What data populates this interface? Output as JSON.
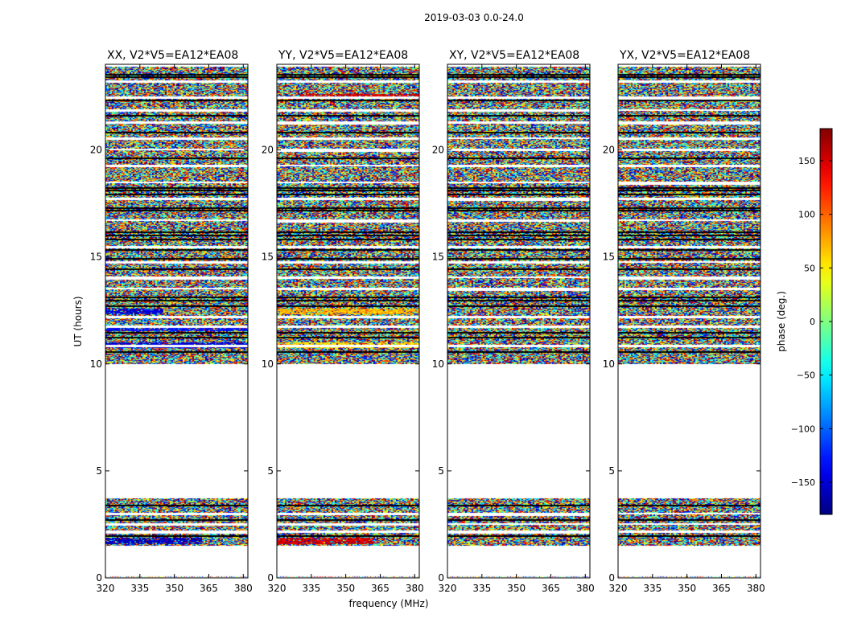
{
  "figure_title": "2019-03-03 0.0-24.0",
  "chart_data": {
    "type": "heatmap",
    "title": "2019-03-03 0.0-24.0",
    "xlabel": "frequency (MHz)",
    "ylabel": "UT (hours)",
    "xlim": [
      320,
      382
    ],
    "ylim": [
      0,
      24
    ],
    "xticks": [
      320,
      335,
      350,
      365,
      380
    ],
    "yticks": [
      0,
      5,
      10,
      15,
      20
    ],
    "colorbar": {
      "label": "phase (deg.)",
      "range": [
        -180,
        180
      ],
      "ticks": [
        150,
        100,
        50,
        0,
        -50,
        -100,
        -150
      ],
      "tick_labels": [
        "150",
        "100",
        "50",
        "0",
        "−50",
        "−100",
        "−150"
      ],
      "colormap": "jet"
    },
    "data_ut_ranges_hours": [
      [
        1.5,
        3.7
      ],
      [
        10.0,
        23.9
      ]
    ],
    "panels": [
      {
        "title": "XX, V2*V5=EA12*EA08",
        "polarization": "XX",
        "coherent_bands": [
          {
            "ut": [
              10.75,
              11.0
            ],
            "f": [
              320,
              382
            ],
            "phase": -150
          },
          {
            "ut": [
              11.55,
              11.7
            ],
            "f": [
              320,
              382
            ],
            "phase": -130
          },
          {
            "ut": [
              12.35,
              12.55
            ],
            "f": [
              320,
              345
            ],
            "phase": -150
          },
          {
            "ut": [
              1.6,
              1.85
            ],
            "f": [
              320,
              362
            ],
            "phase": -160
          }
        ]
      },
      {
        "title": "YY, V2*V5=EA12*EA08",
        "polarization": "YY",
        "coherent_bands": [
          {
            "ut": [
              10.75,
              11.0
            ],
            "f": [
              320,
              382
            ],
            "phase": 60
          },
          {
            "ut": [
              12.35,
              12.55
            ],
            "f": [
              320,
              382
            ],
            "phase": 70
          },
          {
            "ut": [
              22.4,
              22.6
            ],
            "f": [
              330,
              382
            ],
            "phase": 150
          },
          {
            "ut": [
              1.6,
              1.85
            ],
            "f": [
              320,
              362
            ],
            "phase": 150
          }
        ]
      },
      {
        "title": "XY, V2*V5=EA12*EA08",
        "polarization": "XY",
        "coherent_bands": []
      },
      {
        "title": "YX, V2*V5=EA12*EA08",
        "polarization": "YX",
        "coherent_bands": []
      }
    ]
  }
}
